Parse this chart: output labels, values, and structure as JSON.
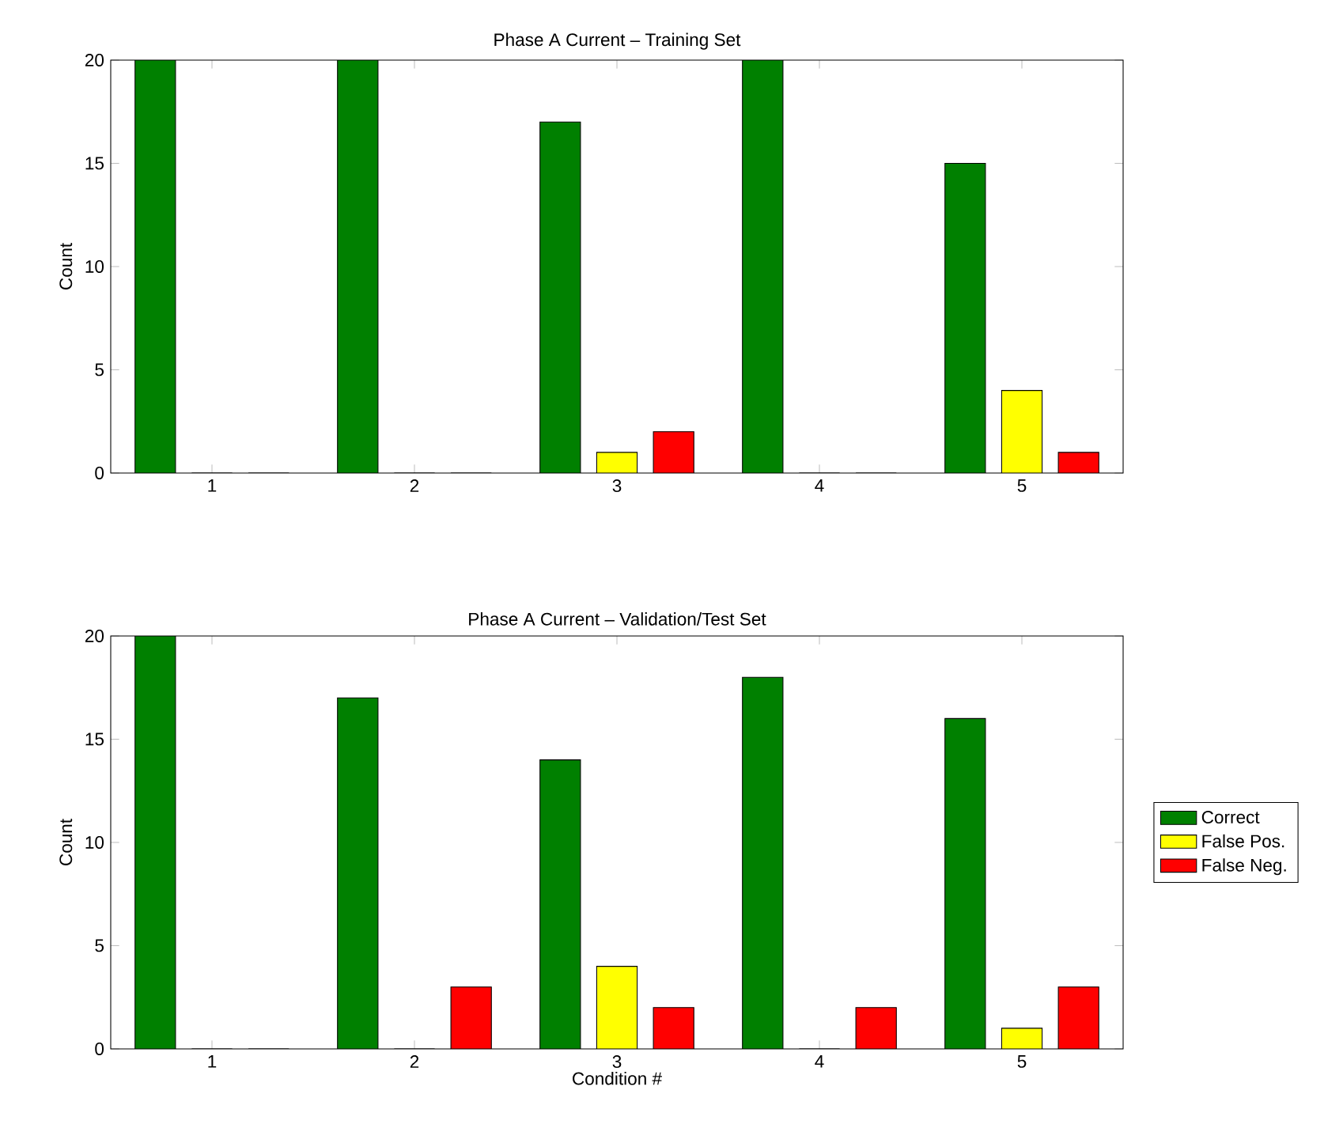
{
  "chart_data": [
    {
      "type": "bar",
      "title": "Phase A Current – Training Set",
      "ylabel": "Count",
      "categories": [
        "1",
        "2",
        "3",
        "4",
        "5"
      ],
      "series": [
        {
          "color": "#008000",
          "values": [
            20,
            20,
            17,
            20,
            15
          ]
        },
        {
          "color": "#ffff00",
          "values": [
            0,
            0,
            1,
            0,
            4
          ]
        },
        {
          "color": "#ff0000",
          "values": [
            0,
            0,
            2,
            0,
            1
          ]
        }
      ],
      "ylim": [
        0,
        20
      ],
      "yticks": [
        0,
        5,
        10,
        15,
        20
      ]
    },
    {
      "type": "bar",
      "title": "Phase A Current – Validation/Test Set",
      "xlabel": "Condition #",
      "ylabel": "Count",
      "categories": [
        "1",
        "2",
        "3",
        "4",
        "5"
      ],
      "series": [
        {
          "name": "Correct",
          "color": "#008000",
          "values": [
            20,
            17,
            14,
            18,
            16
          ]
        },
        {
          "name": "False Pos.",
          "color": "#ffff00",
          "values": [
            0,
            0,
            4,
            0,
            1
          ]
        },
        {
          "name": "False Neg.",
          "color": "#ff0000",
          "values": [
            0,
            3,
            2,
            2,
            3
          ]
        }
      ],
      "ylim": [
        0,
        20
      ],
      "yticks": [
        0,
        5,
        10,
        15,
        20
      ],
      "legend": "right"
    }
  ]
}
